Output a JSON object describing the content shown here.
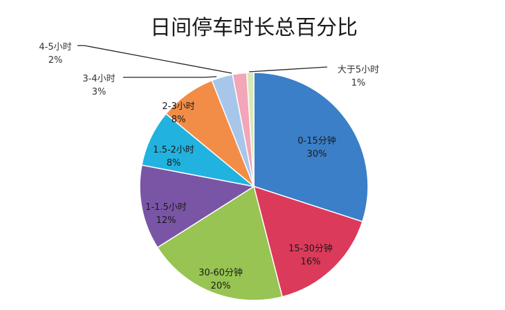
{
  "chart_data": {
    "type": "pie",
    "title": "日间停车时长总百分比",
    "slices": [
      {
        "label": "0-15分钟",
        "pct_text": "30%",
        "value": 30,
        "color": "#3a7fc8"
      },
      {
        "label": "15-30分钟",
        "pct_text": "16%",
        "value": 16,
        "color": "#db3a5a"
      },
      {
        "label": "30-60分钟",
        "pct_text": "20%",
        "value": 20,
        "color": "#97c452"
      },
      {
        "label": "1-1.5小时",
        "pct_text": "12%",
        "value": 12,
        "color": "#7a55a6"
      },
      {
        "label": "1.5-2小时",
        "pct_text": "8%",
        "value": 8,
        "color": "#22b2e0"
      },
      {
        "label": "2-3小时",
        "pct_text": "8%",
        "value": 8,
        "color": "#f28d48"
      },
      {
        "label": "3-4小时",
        "pct_text": "3%",
        "value": 3,
        "color": "#a8c6ea"
      },
      {
        "label": "4-5小时",
        "pct_text": "2%",
        "value": 2,
        "color": "#f2a6b8"
      },
      {
        "label": "大于5小时",
        "pct_text": "1%",
        "value": 1,
        "color": "#d8e8b6"
      }
    ],
    "legend": "none",
    "data_labels": "on-slice"
  }
}
